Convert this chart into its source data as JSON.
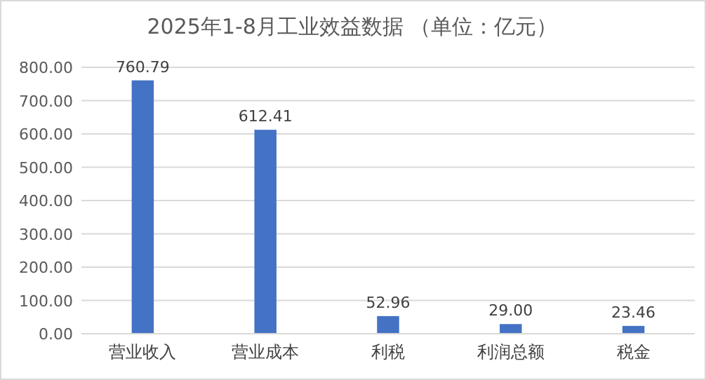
{
  "chart_data": {
    "type": "bar",
    "title": "2025年1-8月工业效益数据 （单位：亿元）",
    "categories": [
      "营业收入",
      "营业成本",
      "利税",
      "利润总额",
      "税金"
    ],
    "values": [
      760.79,
      612.41,
      52.96,
      29.0,
      23.46
    ],
    "value_labels": [
      "760.79",
      "612.41",
      "52.96",
      "29.00",
      "23.46"
    ],
    "color": "#4472c4",
    "ylim": [
      0,
      800
    ],
    "yticks": [
      {
        "value": 0,
        "label": "0.00"
      },
      {
        "value": 100,
        "label": "100.00"
      },
      {
        "value": 200,
        "label": "200.00"
      },
      {
        "value": 300,
        "label": "300.00"
      },
      {
        "value": 400,
        "label": "400.00"
      },
      {
        "value": 500,
        "label": "500.00"
      },
      {
        "value": 600,
        "label": "600.00"
      },
      {
        "value": 700,
        "label": "700.00"
      },
      {
        "value": 800,
        "label": "800.00"
      }
    ],
    "grid": "y"
  }
}
